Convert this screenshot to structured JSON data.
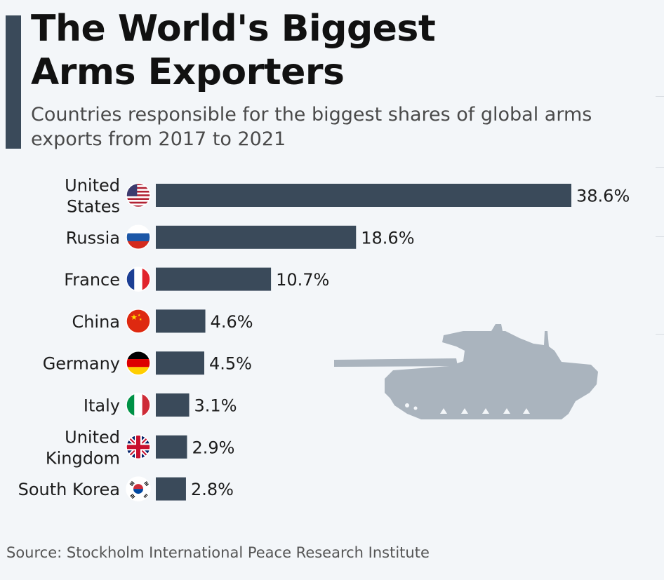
{
  "title": "The World's Biggest\nArms Exporters",
  "subtitle": "Countries responsible for the biggest shares of global arms exports from 2017 to 2021",
  "source": "Source: Stockholm International Peace Research Institute",
  "colors": {
    "bar": "#3a4a5a",
    "accent": "#3a4a5a",
    "tank": "#aab4be"
  },
  "chart_data": {
    "type": "bar",
    "orientation": "horizontal",
    "title": "The World's Biggest Arms Exporters",
    "subtitle": "Countries responsible for the biggest shares of global arms exports from 2017 to 2021",
    "xlabel": "",
    "ylabel": "",
    "xlim": [
      0,
      38.6
    ],
    "grid": false,
    "legend": "none",
    "categories": [
      {
        "label": [
          "United",
          "States"
        ],
        "flag": "flag-us-icon"
      },
      {
        "label": [
          "Russia"
        ],
        "flag": "flag-russia-icon"
      },
      {
        "label": [
          "France"
        ],
        "flag": "flag-france-icon"
      },
      {
        "label": [
          "China"
        ],
        "flag": "flag-china-icon"
      },
      {
        "label": [
          "Germany"
        ],
        "flag": "flag-germany-icon"
      },
      {
        "label": [
          "Italy"
        ],
        "flag": "flag-italy-icon"
      },
      {
        "label": [
          "United",
          "Kingdom"
        ],
        "flag": "flag-uk-icon"
      },
      {
        "label": [
          "South Korea"
        ],
        "flag": "flag-south-korea-icon"
      }
    ],
    "values": [
      38.6,
      18.6,
      10.7,
      4.6,
      4.5,
      3.1,
      2.9,
      2.8
    ],
    "value_labels": [
      "38.6%",
      "18.6%",
      "10.7%",
      "4.6%",
      "4.5%",
      "3.1%",
      "2.9%",
      "2.8%"
    ],
    "decoration": "tank-silhouette-icon"
  }
}
